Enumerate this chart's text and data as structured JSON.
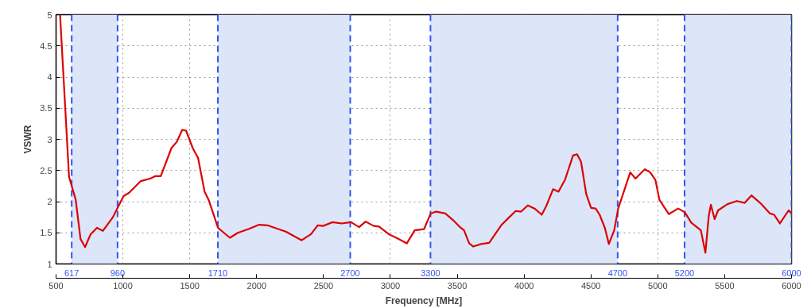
{
  "chart_data": {
    "type": "line",
    "xlabel": "Frequency [MHz]",
    "ylabel": "VSWR",
    "x": [
      530,
      567,
      597,
      647,
      683,
      717,
      757,
      806,
      850,
      925,
      1005,
      1045,
      1134,
      1204,
      1244,
      1283,
      1363,
      1403,
      1443,
      1472,
      1522,
      1562,
      1611,
      1641,
      1711,
      1800,
      1860,
      1940,
      2019,
      2079,
      2218,
      2337,
      2407,
      2457,
      2497,
      2566,
      2636,
      2706,
      2766,
      2815,
      2875,
      2915,
      2994,
      3053,
      3123,
      3182,
      3252,
      3302,
      3342,
      3411,
      3471,
      3521,
      3551,
      3590,
      3620,
      3680,
      3739,
      3829,
      3889,
      3938,
      3978,
      4028,
      4078,
      4132,
      4166,
      4217,
      4257,
      4306,
      4366,
      4396,
      4426,
      4465,
      4501,
      4535,
      4565,
      4604,
      4634,
      4674,
      4704,
      4794,
      4833,
      4903,
      4943,
      4982,
      5012,
      5082,
      5152,
      5202,
      5251,
      5322,
      5356,
      5381,
      5397,
      5425,
      5451,
      5521,
      5591,
      5650,
      5700,
      5770,
      5839,
      5869,
      5913,
      5979,
      6000
    ],
    "series": [
      {
        "color": "#dd0000",
        "values": [
          5.0,
          3.57,
          2.4,
          2.03,
          1.4,
          1.27,
          1.47,
          1.58,
          1.53,
          1.75,
          2.09,
          2.14,
          2.33,
          2.37,
          2.41,
          2.41,
          2.86,
          2.96,
          3.15,
          3.14,
          2.86,
          2.7,
          2.16,
          2.03,
          1.58,
          1.42,
          1.5,
          1.56,
          1.63,
          1.62,
          1.52,
          1.38,
          1.48,
          1.62,
          1.61,
          1.67,
          1.65,
          1.67,
          1.59,
          1.68,
          1.61,
          1.6,
          1.47,
          1.41,
          1.33,
          1.54,
          1.56,
          1.81,
          1.84,
          1.81,
          1.7,
          1.59,
          1.54,
          1.33,
          1.28,
          1.32,
          1.34,
          1.62,
          1.75,
          1.85,
          1.84,
          1.94,
          1.89,
          1.79,
          1.93,
          2.2,
          2.16,
          2.35,
          2.74,
          2.76,
          2.64,
          2.12,
          1.9,
          1.89,
          1.79,
          1.58,
          1.32,
          1.54,
          1.89,
          2.47,
          2.37,
          2.52,
          2.47,
          2.35,
          2.03,
          1.8,
          1.89,
          1.83,
          1.66,
          1.54,
          1.18,
          1.77,
          1.95,
          1.72,
          1.86,
          1.96,
          2.01,
          1.98,
          2.1,
          1.97,
          1.81,
          1.79,
          1.65,
          1.86,
          1.81
        ]
      }
    ],
    "xlim": [
      500,
      6000
    ],
    "xticks": [
      500,
      1000,
      1500,
      2000,
      2500,
      3000,
      3500,
      4000,
      4500,
      5000,
      5500,
      6000
    ],
    "ylim": [
      1,
      5
    ],
    "yticks": [
      1,
      {
        "value": 1.5,
        "label": "1.5"
      },
      2,
      {
        "value": 2.5,
        "label": "2.5"
      },
      3,
      {
        "value": 3.5,
        "label": "3.5"
      },
      4,
      {
        "value": 4.5,
        "label": "4.5"
      },
      5
    ],
    "grid": true,
    "line_style": "solid",
    "marker": "none",
    "bands": [
      {
        "axis": "x",
        "from": 617,
        "to": 960,
        "color": "#dce6f8"
      },
      {
        "axis": "x",
        "from": 1710,
        "to": 2700,
        "color": "#dce6f8"
      },
      {
        "axis": "x",
        "from": 3300,
        "to": 4700,
        "color": "#dce6f8"
      },
      {
        "axis": "x",
        "from": 5200,
        "to": 6000,
        "color": "#dce6f8"
      }
    ],
    "ref_lines": [
      {
        "axis": "x",
        "value": 617,
        "label": "617",
        "color": "#3355ee",
        "line_style": "dashed"
      },
      {
        "axis": "x",
        "value": 960,
        "label": "960",
        "color": "#3355ee",
        "line_style": "dashed"
      },
      {
        "axis": "x",
        "value": 1710,
        "label": "1710",
        "color": "#3355ee",
        "line_style": "dashed"
      },
      {
        "axis": "x",
        "value": 2700,
        "label": "2700",
        "color": "#3355ee",
        "line_style": "dashed"
      },
      {
        "axis": "x",
        "value": 3300,
        "label": "3300",
        "color": "#3355ee",
        "line_style": "dashed"
      },
      {
        "axis": "x",
        "value": 4700,
        "label": "4700",
        "color": "#3355ee",
        "line_style": "dashed"
      },
      {
        "axis": "x",
        "value": 5200,
        "label": "5200",
        "color": "#3355ee",
        "line_style": "dashed"
      },
      {
        "axis": "x",
        "value": 6000,
        "label": "6000",
        "color": "#3355ee",
        "line_style": "dashed"
      }
    ]
  }
}
